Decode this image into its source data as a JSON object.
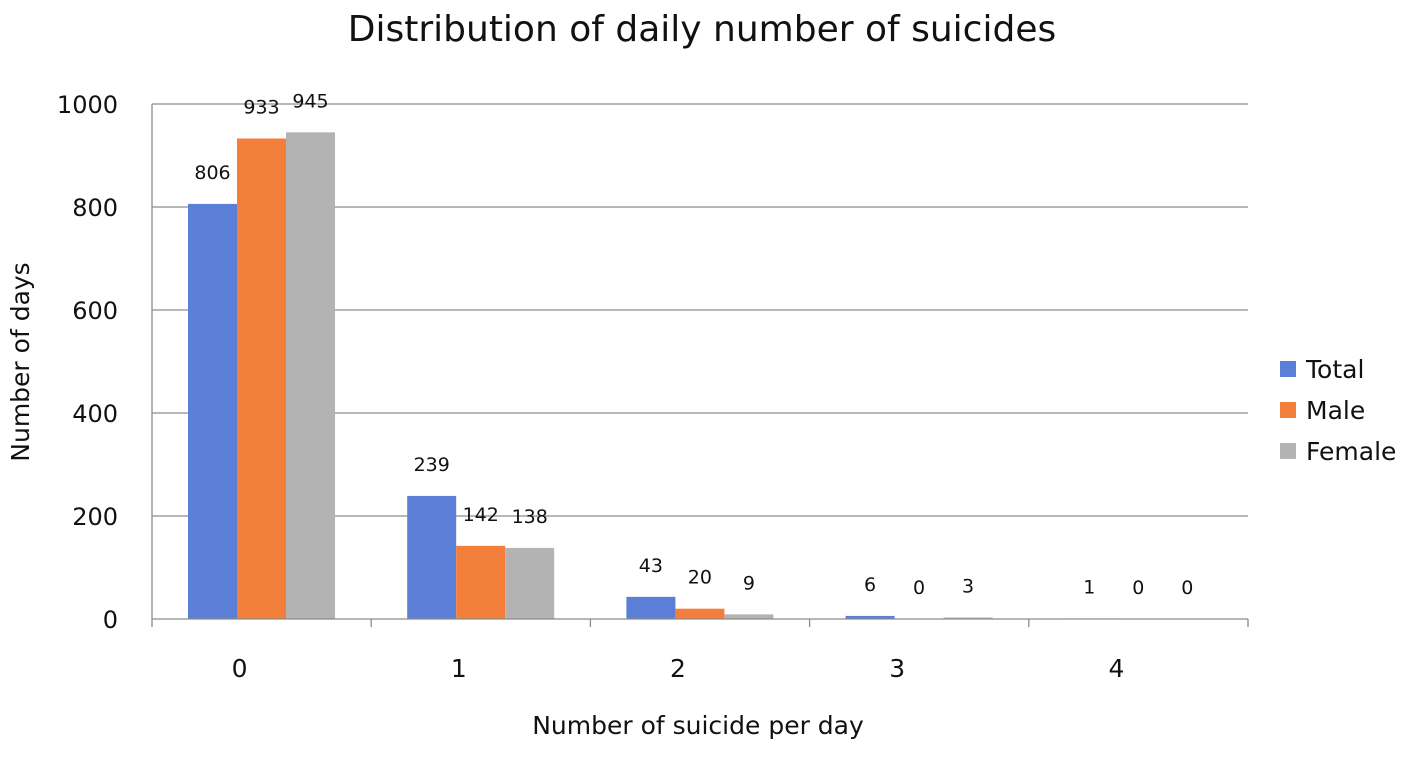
{
  "chart_data": {
    "type": "bar",
    "title": "Distribution of daily number of suicides",
    "xlabel": "Number of suicide per day",
    "ylabel": "Number of days",
    "categories": [
      "0",
      "1",
      "2",
      "3",
      "4"
    ],
    "ylim": [
      0,
      1000
    ],
    "yticks": [
      0,
      200,
      400,
      600,
      800,
      1000
    ],
    "grid": true,
    "legend_position": "right",
    "series": [
      {
        "name": "Total",
        "color": "#5b7fd6",
        "values": [
          806,
          239,
          43,
          6,
          1
        ]
      },
      {
        "name": "Male",
        "color": "#f47f3a",
        "values": [
          933,
          142,
          20,
          0,
          0
        ]
      },
      {
        "name": "Female",
        "color": "#b3b3b3",
        "values": [
          945,
          138,
          9,
          3,
          0
        ]
      }
    ]
  }
}
